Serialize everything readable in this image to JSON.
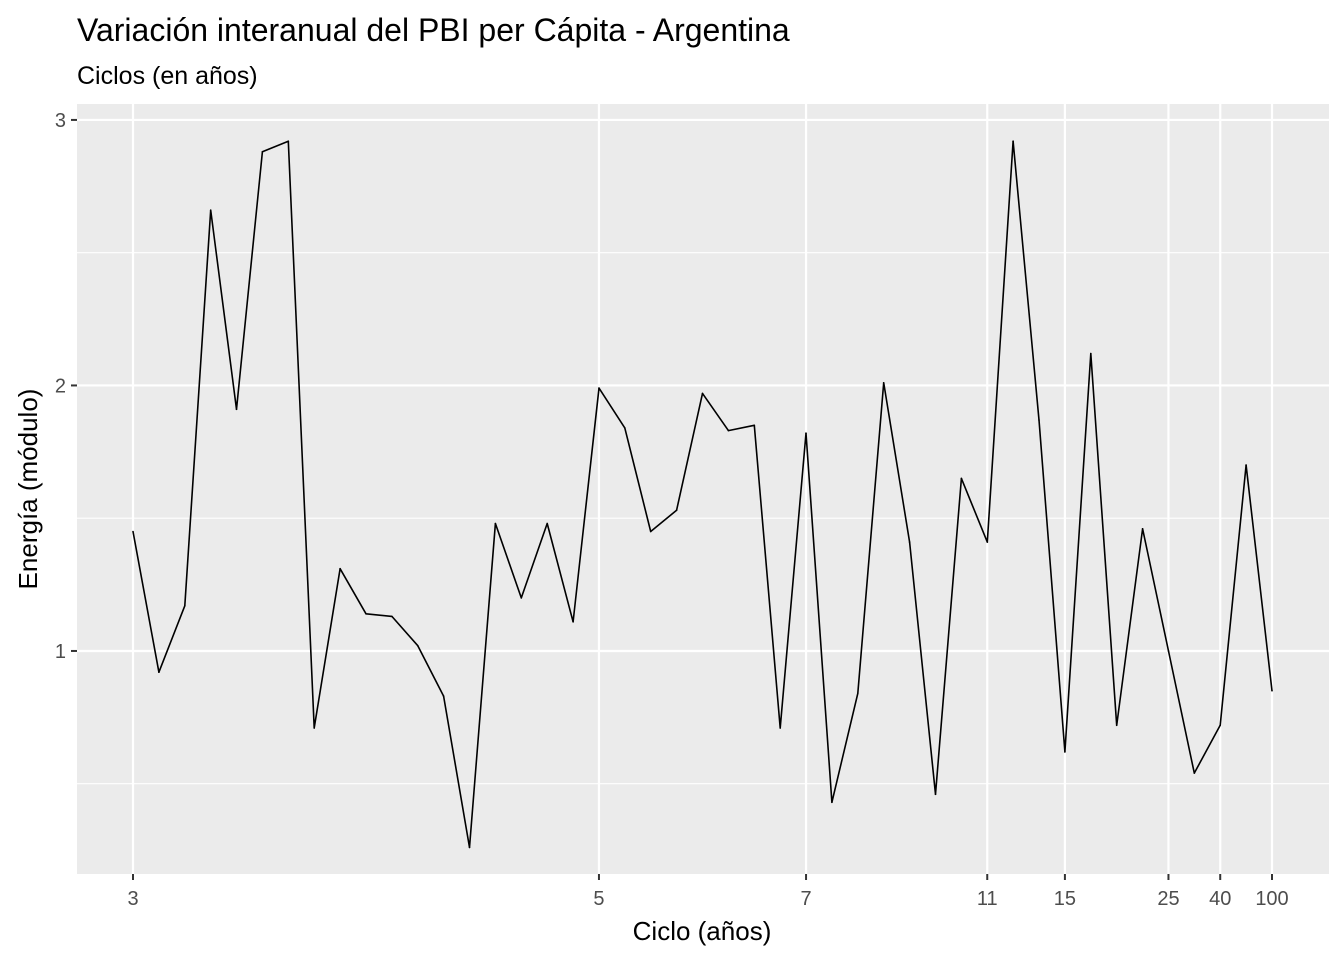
{
  "chart_data": {
    "type": "line",
    "title": "Variación interanual del PBI per Cápita - Argentina",
    "subtitle": "Ciclos (en años)",
    "xlabel": "Ciclo (años)",
    "ylabel": "Energía (módulo)",
    "x_tick_labels": [
      "3",
      "5",
      "7",
      "11",
      "15",
      "25",
      "40",
      "100"
    ],
    "y_ticks": [
      1,
      2,
      3
    ],
    "y_tick_labels": [
      "1",
      "2",
      "3"
    ],
    "ylim": [
      0.16,
      3.06
    ],
    "grid": true,
    "series": [
      {
        "values": [
          1.45,
          0.92,
          1.17,
          2.66,
          1.91,
          2.88,
          2.92,
          0.71,
          1.31,
          1.14,
          1.13,
          1.02,
          0.83,
          0.26,
          1.48,
          1.2,
          1.48,
          1.11,
          1.99,
          1.84,
          1.45,
          1.53,
          1.97,
          1.83,
          1.85,
          0.71,
          1.82,
          0.43,
          0.84,
          2.01,
          1.41,
          0.46,
          1.65,
          1.41,
          2.92,
          1.87,
          0.62,
          2.12,
          0.72,
          1.46,
          1.0,
          0.54,
          0.72,
          1.7,
          0.85
        ]
      }
    ]
  }
}
